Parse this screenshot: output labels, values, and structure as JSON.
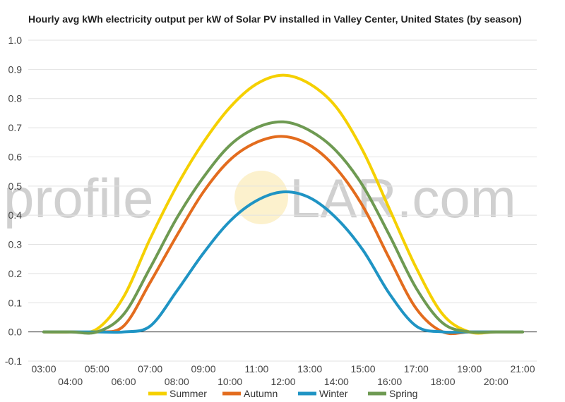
{
  "chart_data": {
    "type": "line",
    "title": "Hourly avg kWh electricity output per kW of Solar PV installed in Valley Center, United States (by season)",
    "xlabel": "",
    "ylabel": "",
    "x": [
      "03:00",
      "04:00",
      "05:00",
      "06:00",
      "07:00",
      "08:00",
      "09:00",
      "10:00",
      "11:00",
      "12:00",
      "13:00",
      "14:00",
      "15:00",
      "16:00",
      "17:00",
      "18:00",
      "19:00",
      "20:00",
      "21:00"
    ],
    "ylim": [
      -0.1,
      1.0
    ],
    "yticks": [
      "-0.1",
      "0.0",
      "0.1",
      "0.2",
      "0.3",
      "0.4",
      "0.5",
      "0.6",
      "0.7",
      "0.8",
      "0.9",
      "1.0"
    ],
    "grid": true,
    "legend_position": "bottom",
    "series": [
      {
        "name": "Summer",
        "color": "#f5d000",
        "values": [
          0,
          0,
          0.01,
          0.12,
          0.32,
          0.5,
          0.65,
          0.77,
          0.85,
          0.88,
          0.85,
          0.77,
          0.62,
          0.42,
          0.22,
          0.06,
          0,
          0,
          0
        ]
      },
      {
        "name": "Autumn",
        "color": "#e36c1e",
        "values": [
          0,
          0,
          0,
          0.02,
          0.17,
          0.33,
          0.48,
          0.59,
          0.65,
          0.67,
          0.64,
          0.56,
          0.43,
          0.25,
          0.08,
          0,
          0,
          0,
          0
        ]
      },
      {
        "name": "Winter",
        "color": "#1f94c4",
        "values": [
          0,
          0,
          0,
          0,
          0.02,
          0.14,
          0.27,
          0.38,
          0.45,
          0.48,
          0.46,
          0.39,
          0.28,
          0.13,
          0.02,
          0,
          0,
          0,
          0
        ]
      },
      {
        "name": "Spring",
        "color": "#6e9a52",
        "values": [
          0,
          0,
          0,
          0.06,
          0.22,
          0.39,
          0.53,
          0.64,
          0.7,
          0.72,
          0.69,
          0.62,
          0.5,
          0.33,
          0.15,
          0.03,
          0,
          0,
          0
        ]
      }
    ]
  },
  "watermark": {
    "left": "profile",
    "right": "LAR.com"
  }
}
